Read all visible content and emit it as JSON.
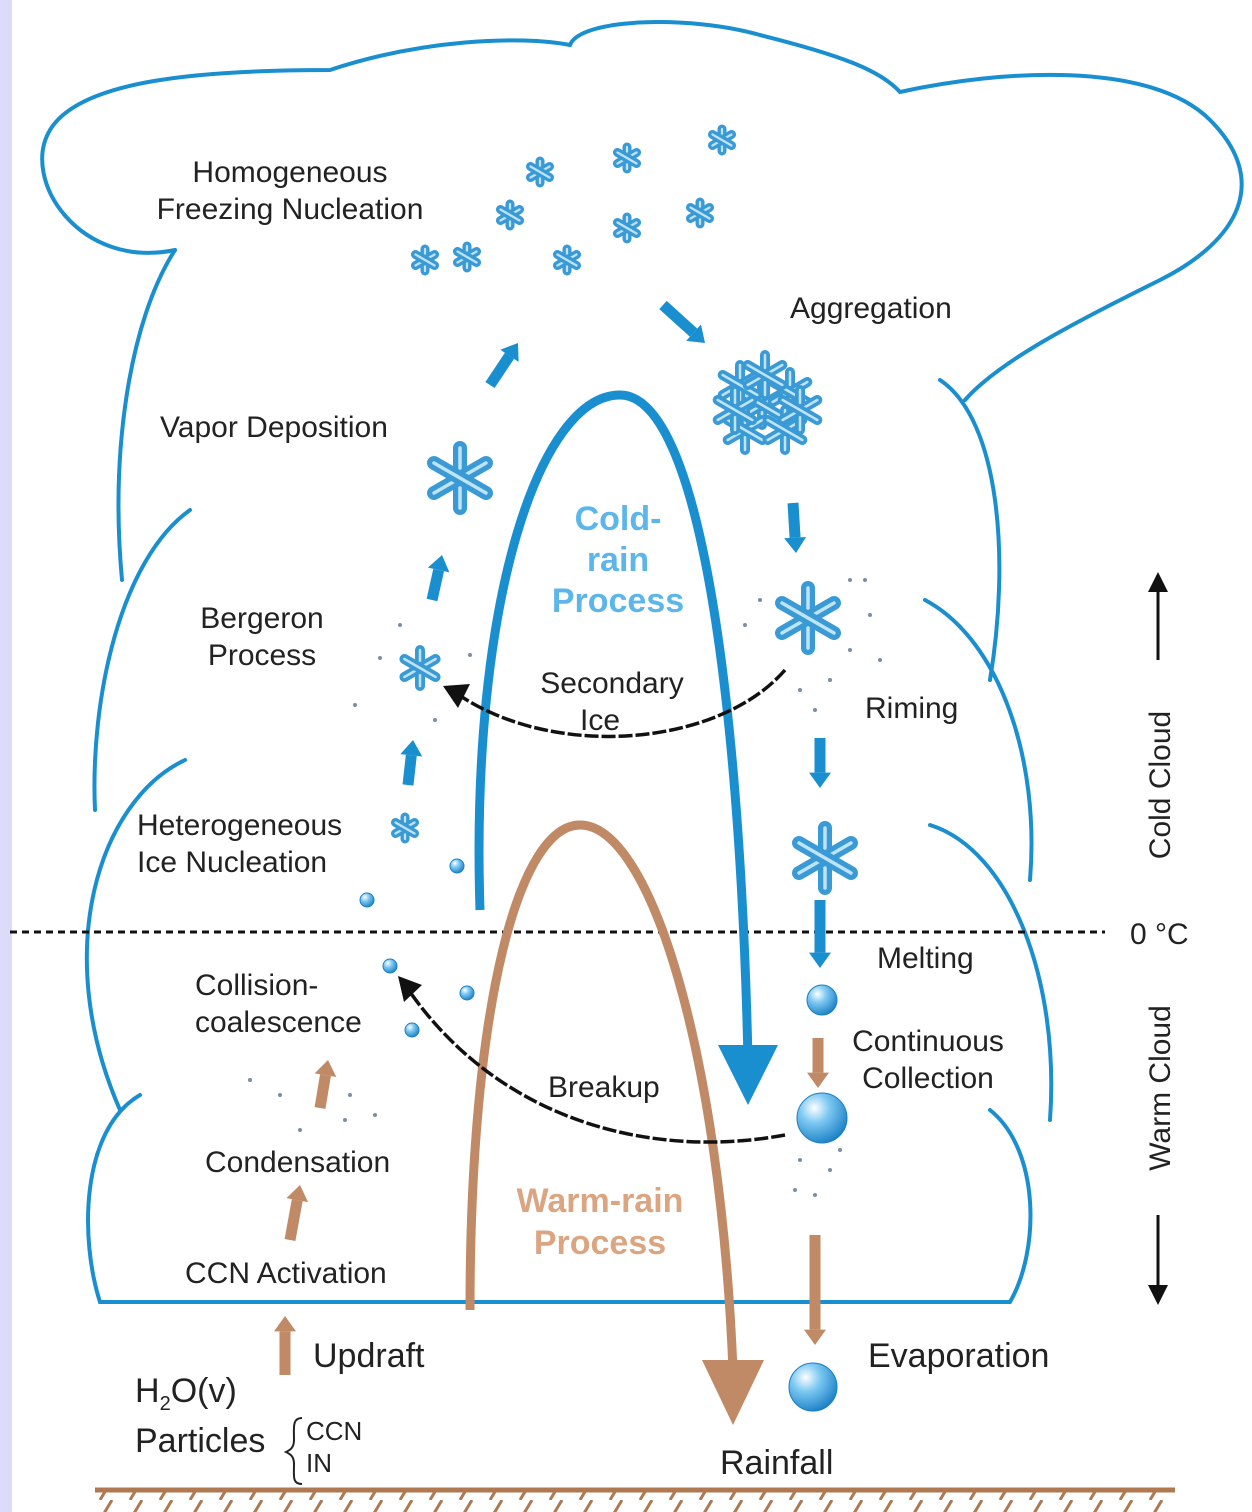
{
  "labels": {
    "homogeneous": [
      "Homogeneous",
      "Freezing Nucleation"
    ],
    "aggregation": [
      "Aggregation"
    ],
    "vapor": [
      "Vapor Deposition"
    ],
    "cold_rain": [
      "Cold-",
      "rain",
      "Process"
    ],
    "bergeron": [
      "Bergeron",
      "Process"
    ],
    "secondary": [
      "Secondary",
      "Ice"
    ],
    "riming": [
      "Riming"
    ],
    "heterogeneous": [
      "Heterogeneous",
      "Ice Nucleation"
    ],
    "zero": [
      "0 °C"
    ],
    "cold_cloud": [
      "Cold Cloud"
    ],
    "warm_cloud": [
      "Warm Cloud"
    ],
    "melting": [
      "Melting"
    ],
    "collision": [
      "Collision-",
      "coalescence"
    ],
    "continuous": [
      "Continuous",
      "Collection"
    ],
    "breakup": [
      "Breakup"
    ],
    "condensation": [
      "Condensation"
    ],
    "warm_rain": [
      "Warm-rain",
      "Process"
    ],
    "ccn_activation": [
      "CCN Activation"
    ],
    "updraft": [
      "Updraft"
    ],
    "evaporation": [
      "Evaporation"
    ],
    "h2o": [
      "H",
      "2",
      "O(v)"
    ],
    "particles": [
      "Particles"
    ],
    "ccn": [
      "CCN"
    ],
    "in": [
      "IN"
    ],
    "rainfall": [
      "Rainfall"
    ]
  }
}
